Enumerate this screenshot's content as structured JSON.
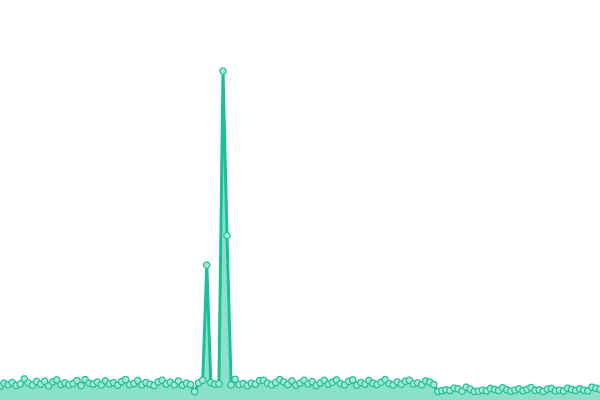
{
  "chart_data": {
    "type": "area",
    "title": "",
    "xlabel": "",
    "ylabel": "",
    "ylim": [
      0,
      120
    ],
    "grid": false,
    "axes_visible": false,
    "legend": "none",
    "colors": {
      "line": "#1dbf96",
      "fill": "#8ae0c8",
      "marker_fill": "#a6e8d6",
      "marker_stroke": "#1dbf96"
    },
    "values": [
      4.2,
      5.1,
      4.6,
      5.3,
      4.4,
      4.9,
      6.4,
      5.2,
      4.5,
      5.6,
      4.8,
      5.7,
      4.3,
      5.5,
      6.1,
      4.7,
      5.2,
      4.6,
      5.0,
      5.9,
      4.4,
      6.2,
      5.1,
      4.8,
      5.4,
      4.6,
      5.8,
      4.9,
      5.3,
      4.5,
      5.6,
      6.2,
      4.7,
      5.0,
      5.9,
      4.6,
      5.3,
      4.8,
      4.4,
      5.5,
      6.0,
      4.9,
      5.4,
      4.6,
      5.8,
      4.5,
      5.1,
      4.7,
      2.5,
      5.2,
      6.0,
      41,
      5.3,
      4.8,
      4.9,
      100,
      50,
      4.6,
      6.3,
      4.7,
      5.0,
      4.4,
      5.1,
      4.8,
      5.9,
      6.0,
      5.1,
      4.6,
      5.3,
      6.2,
      5.5,
      4.7,
      5.8,
      4.5,
      5.1,
      6.0,
      4.9,
      5.6,
      4.4,
      5.2,
      6.0,
      4.8,
      5.4,
      6.1,
      5.0,
      4.6,
      5.7,
      6.1,
      4.5,
      5.3,
      4.8,
      5.9,
      5.1,
      4.7,
      5.4,
      6.2,
      5.0,
      4.6,
      5.5,
      4.8,
      5.7,
      6.0,
      4.9,
      5.2,
      4.6,
      5.8,
      5.4,
      4.7,
      2.6,
      2.8,
      3.1,
      2.9,
      3.6,
      3.4,
      2.7,
      3.9,
      3.3,
      2.6,
      2.7,
      3.0,
      2.8,
      3.5,
      3.2,
      2.9,
      3.7,
      3.1,
      2.7,
      3.0,
      3.4,
      2.8,
      3.2,
      3.8,
      2.9,
      3.1,
      2.6,
      3.3,
      3.5,
      2.8,
      3.0,
      2.7,
      3.6,
      3.2,
      2.9,
      3.4,
      3.0,
      2.8,
      3.9,
      3.6,
      3.3
    ]
  }
}
